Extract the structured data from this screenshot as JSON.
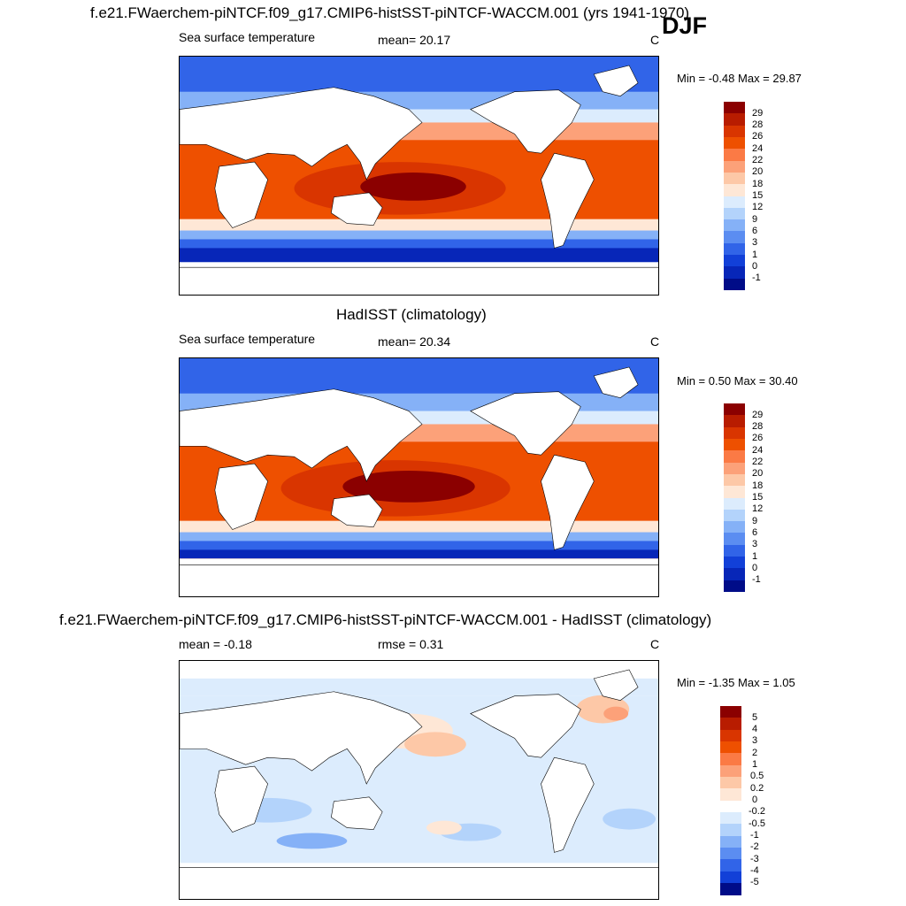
{
  "season": "DJF",
  "panels": [
    {
      "title": "f.e21.FWaerchem-piNTCF.f09_g17.CMIP6-histSST-piNTCF-WACCM.001 (yrs 1941-1970)",
      "left_label": "Sea surface temperature",
      "center_label": "mean=  20.17",
      "units": "C",
      "minmax": "Min =  -0.48 Max =  29.87",
      "colorbar": {
        "ticks": [
          "29",
          "28",
          "26",
          "24",
          "22",
          "20",
          "18",
          "15",
          "12",
          "9",
          "6",
          "3",
          "1",
          "0",
          "-1"
        ],
        "colors": [
          "#8b0000",
          "#b81c00",
          "#d93500",
          "#ee5000",
          "#fb7a45",
          "#fca179",
          "#fdc8a7",
          "#fee7d6",
          "#dcecfd",
          "#b3d3fb",
          "#85b1f7",
          "#5b8df1",
          "#3164e8",
          "#1240d8",
          "#0726b8",
          "#000c88"
        ]
      }
    },
    {
      "title": "HadISST (climatology)",
      "left_label": "Sea surface temperature",
      "center_label": "mean=  20.34",
      "units": "C",
      "minmax": "Min =   0.50 Max =  30.40",
      "colorbar": {
        "ticks": [
          "29",
          "28",
          "26",
          "24",
          "22",
          "20",
          "18",
          "15",
          "12",
          "9",
          "6",
          "3",
          "1",
          "0",
          "-1"
        ],
        "colors": [
          "#8b0000",
          "#b81c00",
          "#d93500",
          "#ee5000",
          "#fb7a45",
          "#fca179",
          "#fdc8a7",
          "#fee7d6",
          "#dcecfd",
          "#b3d3fb",
          "#85b1f7",
          "#5b8df1",
          "#3164e8",
          "#1240d8",
          "#0726b8",
          "#000c88"
        ]
      }
    },
    {
      "title": "f.e21.FWaerchem-piNTCF.f09_g17.CMIP6-histSST-piNTCF-WACCM.001 - HadISST (climatology)",
      "left_label": "mean =  -0.18",
      "center_label": "rmse =   0.31",
      "units": "C",
      "minmax": "Min =  -1.35 Max =   1.05",
      "colorbar": {
        "ticks": [
          "5",
          "4",
          "3",
          "2",
          "1",
          "0.5",
          "0.2",
          "0",
          "-0.2",
          "-0.5",
          "-1",
          "-2",
          "-3",
          "-4",
          "-5"
        ],
        "colors": [
          "#8b0000",
          "#b81c00",
          "#d93500",
          "#ee5000",
          "#fb7a45",
          "#fca179",
          "#fdc8a7",
          "#fee7d6",
          "#ffffff",
          "#dcecfd",
          "#b3d3fb",
          "#85b1f7",
          "#5b8df1",
          "#3164e8",
          "#1240d8",
          "#000c88"
        ]
      }
    }
  ]
}
